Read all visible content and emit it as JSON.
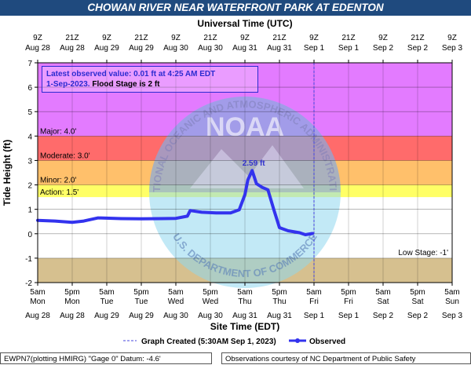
{
  "title": "CHOWAN RIVER NEAR WATERFRONT PARK AT EDENTON",
  "chart_data": {
    "type": "line",
    "top_axis_label": "Universal Time (UTC)",
    "xlabel": "Site Time (EDT)",
    "ylabel": "Tide Height (ft)",
    "ylim": [
      -2,
      7
    ],
    "yticks": [
      "-2",
      "-1",
      "0",
      "1",
      "2",
      "3",
      "4",
      "5",
      "6",
      "7"
    ],
    "bottom_ticks": [
      {
        "time": "5am",
        "day": "Mon",
        "date": "Aug 28"
      },
      {
        "time": "5pm",
        "day": "Mon",
        "date": "Aug 28"
      },
      {
        "time": "5am",
        "day": "Tue",
        "date": "Aug 29"
      },
      {
        "time": "5pm",
        "day": "Tue",
        "date": "Aug 29"
      },
      {
        "time": "5am",
        "day": "Wed",
        "date": "Aug 30"
      },
      {
        "time": "5pm",
        "day": "Wed",
        "date": "Aug 30"
      },
      {
        "time": "5am",
        "day": "Thu",
        "date": "Aug 31"
      },
      {
        "time": "5pm",
        "day": "Thu",
        "date": "Aug 31"
      },
      {
        "time": "5am",
        "day": "Fri",
        "date": "Sep 1"
      },
      {
        "time": "5pm",
        "day": "Fri",
        "date": "Sep 1"
      },
      {
        "time": "5am",
        "day": "Sat",
        "date": "Sep 2"
      },
      {
        "time": "5pm",
        "day": "Sat",
        "date": "Sep 2"
      },
      {
        "time": "5am",
        "day": "Sun",
        "date": "Sep 3"
      }
    ],
    "top_ticks": [
      {
        "time": "9Z",
        "date": "Aug 28"
      },
      {
        "time": "21Z",
        "date": "Aug 28"
      },
      {
        "time": "9Z",
        "date": "Aug 29"
      },
      {
        "time": "21Z",
        "date": "Aug 29"
      },
      {
        "time": "9Z",
        "date": "Aug 30"
      },
      {
        "time": "21Z",
        "date": "Aug 30"
      },
      {
        "time": "9Z",
        "date": "Aug 31"
      },
      {
        "time": "21Z",
        "date": "Aug 31"
      },
      {
        "time": "9Z",
        "date": "Sep 1"
      },
      {
        "time": "21Z",
        "date": "Sep 1"
      },
      {
        "time": "9Z",
        "date": "Sep 2"
      },
      {
        "time": "21Z",
        "date": "Sep 2"
      },
      {
        "time": "9Z",
        "date": "Sep 3"
      }
    ],
    "stage_bands": [
      {
        "label": "Major: 4.0'",
        "from": 4.0,
        "to": 7.0,
        "color": "#e37bff"
      },
      {
        "label": "Moderate: 3.0'",
        "from": 3.0,
        "to": 4.0,
        "color": "#ff6b6b"
      },
      {
        "label": "Minor: 2.0'",
        "from": 2.0,
        "to": 3.0,
        "color": "#ffc06b"
      },
      {
        "label": "Action: 1.5'",
        "from": 1.5,
        "to": 2.0,
        "color": "#ffff66"
      },
      {
        "label": "Low Stage: -1'",
        "from": -2.0,
        "to": -1.0,
        "color": "#d6c08f"
      }
    ],
    "series": [
      {
        "name": "Observed",
        "color": "#3333ee",
        "points": [
          {
            "x": "2023-08-28 05:00",
            "y": 0.55
          },
          {
            "x": "2023-08-28 11:00",
            "y": 0.52
          },
          {
            "x": "2023-08-28 17:00",
            "y": 0.47
          },
          {
            "x": "2023-08-28 21:00",
            "y": 0.52
          },
          {
            "x": "2023-08-29 02:00",
            "y": 0.65
          },
          {
            "x": "2023-08-29 10:00",
            "y": 0.62
          },
          {
            "x": "2023-08-29 17:00",
            "y": 0.61
          },
          {
            "x": "2023-08-30 00:00",
            "y": 0.62
          },
          {
            "x": "2023-08-30 05:00",
            "y": 0.63
          },
          {
            "x": "2023-08-30 09:00",
            "y": 0.72
          },
          {
            "x": "2023-08-30 10:00",
            "y": 0.95
          },
          {
            "x": "2023-08-30 14:00",
            "y": 0.88
          },
          {
            "x": "2023-08-30 19:00",
            "y": 0.85
          },
          {
            "x": "2023-08-31 00:00",
            "y": 0.85
          },
          {
            "x": "2023-08-31 03:00",
            "y": 0.98
          },
          {
            "x": "2023-08-31 05:00",
            "y": 1.6
          },
          {
            "x": "2023-08-31 06:00",
            "y": 2.2
          },
          {
            "x": "2023-08-31 07:30",
            "y": 2.59
          },
          {
            "x": "2023-08-31 09:00",
            "y": 2.05
          },
          {
            "x": "2023-08-31 11:00",
            "y": 1.9
          },
          {
            "x": "2023-08-31 13:00",
            "y": 1.8
          },
          {
            "x": "2023-08-31 15:00",
            "y": 1.0
          },
          {
            "x": "2023-08-31 17:00",
            "y": 0.25
          },
          {
            "x": "2023-08-31 20:00",
            "y": 0.12
          },
          {
            "x": "2023-09-01 00:00",
            "y": 0.04
          },
          {
            "x": "2023-09-01 02:00",
            "y": -0.04
          },
          {
            "x": "2023-09-01 04:25",
            "y": 0.01
          }
        ]
      }
    ],
    "peak_label": "2.59 ft",
    "latest": {
      "line1": "Latest observed value: 0.01 ft at 4:25 AM EDT",
      "line2_date": "1-Sep-2023.",
      "line2_flood": "Flood Stage is 2 ft"
    },
    "graph_created": "Graph Created (5:30AM Sep 1, 2023)",
    "legend_observed": "Observed",
    "watermark": {
      "top_text": "NATIONAL OCEANIC AND ATMOSPHERIC ADMINISTRATION",
      "bottom_text": "U.S. DEPARTMENT OF COMMERCE",
      "center_text": "NOAA"
    }
  },
  "footer": {
    "left": "EWPN7(plotting HMIRG) \"Gage 0\" Datum:  -4.6'",
    "right": "Observations courtesy of NC Department of Public Safety"
  }
}
